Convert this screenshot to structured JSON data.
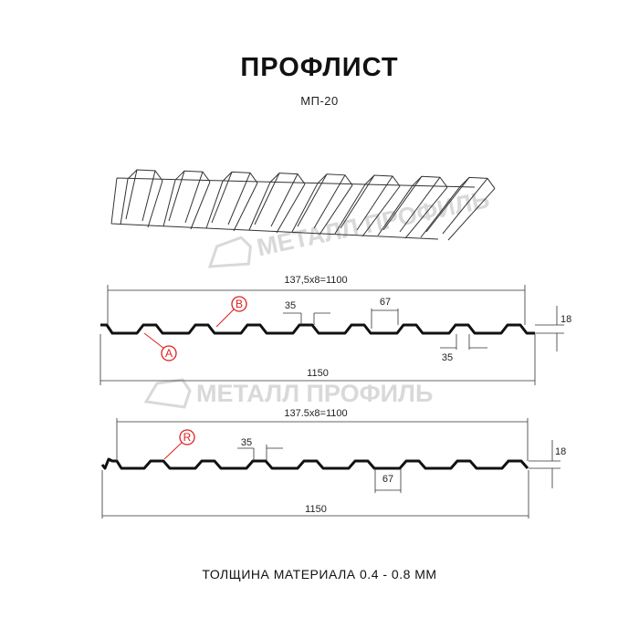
{
  "title": "ПРОФЛИСТ",
  "subtitle": "МП-20",
  "footer": "ТОЛЩИНА МАТЕРИАЛА 0.4 - 0.8 ММ",
  "watermark": "МЕТАЛЛ ПРОФИЛЬ",
  "colors": {
    "profile": "#111111",
    "marker": "#e02020",
    "watermark": "#d9d9d9"
  },
  "profile_a": {
    "pitch_dim": "137,5x8=1100",
    "width_dim": "1150",
    "top_rib_dim": "35",
    "bottom_rib_dim": "35",
    "gap_dim": "67",
    "height_dim": "18",
    "markers": [
      "A",
      "B"
    ]
  },
  "profile_b": {
    "pitch_dim": "137.5x8=1100",
    "width_dim": "1150",
    "top_rib_dim": "35",
    "gap_dim": "67",
    "height_dim": "18",
    "markers": [
      "R"
    ]
  }
}
